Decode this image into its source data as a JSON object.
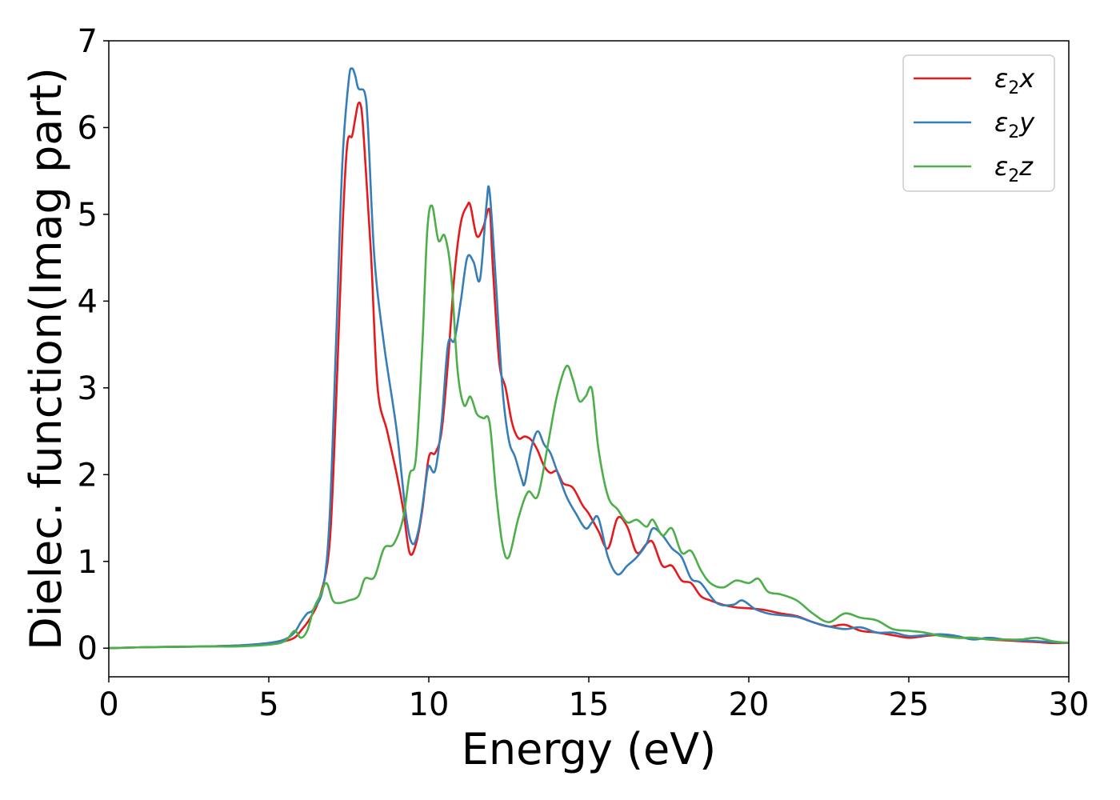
{
  "chart_data": {
    "type": "line",
    "xlabel": "Energy (eV)",
    "ylabel": "Dielec. function(Imag part)",
    "xlim": [
      0,
      30
    ],
    "ylim": [
      -0.33,
      7.0
    ],
    "xticks": [
      0,
      5,
      10,
      15,
      20,
      25,
      30
    ],
    "yticks": [
      0,
      1,
      2,
      3,
      4,
      5,
      6,
      7
    ],
    "grid": false,
    "legend_position": "top-right",
    "series": [
      {
        "name": "ε2x",
        "name_main": "ε",
        "name_sub": "2",
        "name_var": "x",
        "color": "#e41a1c",
        "x": [
          0,
          1,
          2,
          3,
          4,
          5,
          5.5,
          5.8,
          6.0,
          6.3,
          6.6,
          6.9,
          7.1,
          7.3,
          7.45,
          7.6,
          7.7,
          7.8,
          7.9,
          8.0,
          8.2,
          8.4,
          8.7,
          9.0,
          9.2,
          9.4,
          9.6,
          9.8,
          10.0,
          10.2,
          10.4,
          10.6,
          10.8,
          11.0,
          11.2,
          11.3,
          11.5,
          11.7,
          11.9,
          12.0,
          12.2,
          12.4,
          12.6,
          12.8,
          13.0,
          13.2,
          13.4,
          13.6,
          13.8,
          14.0,
          14.2,
          14.5,
          14.8,
          15.0,
          15.3,
          15.6,
          15.9,
          16.2,
          16.5,
          16.8,
          17.0,
          17.3,
          17.6,
          17.9,
          18.2,
          18.5,
          18.8,
          19.2,
          19.6,
          20.0,
          20.5,
          21.0,
          21.5,
          22.0,
          22.5,
          23.0,
          23.5,
          24.0,
          24.5,
          25.0,
          25.5,
          26.0,
          26.5,
          27.0,
          27.5,
          28.0,
          28.5,
          29.0,
          29.5,
          30.0
        ],
        "y": [
          0,
          0.01,
          0.015,
          0.02,
          0.03,
          0.05,
          0.08,
          0.12,
          0.2,
          0.35,
          0.6,
          1.2,
          2.8,
          4.8,
          5.8,
          5.9,
          6.1,
          6.28,
          6.2,
          5.7,
          4.5,
          3.0,
          2.5,
          2.0,
          1.6,
          1.1,
          1.2,
          1.6,
          2.2,
          2.25,
          2.5,
          3.3,
          4.3,
          4.9,
          5.1,
          5.1,
          4.75,
          4.85,
          5.05,
          4.4,
          3.3,
          3.0,
          2.6,
          2.42,
          2.44,
          2.4,
          2.28,
          2.1,
          2.02,
          2.04,
          1.9,
          1.85,
          1.65,
          1.55,
          1.35,
          1.15,
          1.5,
          1.4,
          1.1,
          1.2,
          1.22,
          0.95,
          0.95,
          0.78,
          0.75,
          0.6,
          0.55,
          0.5,
          0.47,
          0.46,
          0.44,
          0.4,
          0.37,
          0.3,
          0.25,
          0.27,
          0.2,
          0.18,
          0.15,
          0.12,
          0.14,
          0.15,
          0.12,
          0.12,
          0.1,
          0.09,
          0.08,
          0.07,
          0.06,
          0.06
        ]
      },
      {
        "name": "ε2y",
        "name_main": "ε",
        "name_sub": "2",
        "name_var": "y",
        "color": "#377eb8",
        "x": [
          0,
          1,
          2,
          3,
          4,
          5,
          5.5,
          5.8,
          6.0,
          6.2,
          6.4,
          6.7,
          6.9,
          7.1,
          7.3,
          7.5,
          7.6,
          7.7,
          7.8,
          8.0,
          8.1,
          8.3,
          8.6,
          9.0,
          9.3,
          9.5,
          9.7,
          9.9,
          10.0,
          10.2,
          10.4,
          10.6,
          10.8,
          11.0,
          11.2,
          11.4,
          11.6,
          11.8,
          11.9,
          12.1,
          12.3,
          12.5,
          12.7,
          12.9,
          13.0,
          13.2,
          13.4,
          13.6,
          13.8,
          14.0,
          14.3,
          14.6,
          14.9,
          15.1,
          15.3,
          15.6,
          15.9,
          16.2,
          16.5,
          16.8,
          17.0,
          17.3,
          17.6,
          17.9,
          18.2,
          18.5,
          19.0,
          19.5,
          19.8,
          20.2,
          20.6,
          21.0,
          21.5,
          22.0,
          22.5,
          23.0,
          23.5,
          24.0,
          24.5,
          25.0,
          25.5,
          26.0,
          26.5,
          27.0,
          27.5,
          28.0,
          28.5,
          29.0,
          29.5,
          30.0
        ],
        "y": [
          0,
          0.01,
          0.015,
          0.02,
          0.03,
          0.06,
          0.1,
          0.18,
          0.3,
          0.4,
          0.45,
          0.7,
          1.5,
          3.5,
          5.6,
          6.55,
          6.68,
          6.6,
          6.45,
          6.4,
          6.0,
          4.5,
          3.5,
          2.5,
          1.5,
          1.2,
          1.4,
          1.9,
          2.1,
          2.05,
          2.6,
          3.5,
          3.55,
          4.0,
          4.5,
          4.45,
          4.25,
          5.1,
          5.26,
          4.2,
          3.0,
          2.4,
          2.2,
          1.95,
          1.9,
          2.3,
          2.5,
          2.35,
          2.25,
          2.05,
          1.75,
          1.55,
          1.38,
          1.45,
          1.5,
          1.05,
          0.85,
          0.95,
          1.05,
          1.2,
          1.38,
          1.3,
          1.15,
          1.05,
          0.8,
          0.75,
          0.52,
          0.5,
          0.55,
          0.45,
          0.4,
          0.38,
          0.36,
          0.3,
          0.25,
          0.22,
          0.24,
          0.18,
          0.18,
          0.14,
          0.15,
          0.16,
          0.14,
          0.1,
          0.12,
          0.1,
          0.09,
          0.08,
          0.07,
          0.06
        ]
      },
      {
        "name": "ε2z",
        "name_main": "ε",
        "name_sub": "2",
        "name_var": "z",
        "color": "#4daf4a",
        "x": [
          0,
          1,
          2,
          3,
          4,
          5,
          5.5,
          5.8,
          6.0,
          6.2,
          6.4,
          6.6,
          6.8,
          7.0,
          7.2,
          7.5,
          7.8,
          8.0,
          8.3,
          8.6,
          8.9,
          9.2,
          9.4,
          9.6,
          9.8,
          9.95,
          10.1,
          10.3,
          10.5,
          10.7,
          10.9,
          11.1,
          11.3,
          11.5,
          11.7,
          11.9,
          12.1,
          12.3,
          12.5,
          12.8,
          13.1,
          13.4,
          13.7,
          14.0,
          14.3,
          14.5,
          14.7,
          14.9,
          15.1,
          15.3,
          15.6,
          15.9,
          16.2,
          16.5,
          16.8,
          17.0,
          17.3,
          17.6,
          17.9,
          18.2,
          18.5,
          18.8,
          19.2,
          19.6,
          20.0,
          20.3,
          20.6,
          21.0,
          21.5,
          22.0,
          22.5,
          23.0,
          23.5,
          24.0,
          24.5,
          25.0,
          25.5,
          26.0,
          26.5,
          27.0,
          27.5,
          28.0,
          28.5,
          29.0,
          29.5,
          30.0
        ],
        "y": [
          0,
          0.01,
          0.015,
          0.02,
          0.02,
          0.04,
          0.08,
          0.2,
          0.12,
          0.2,
          0.45,
          0.6,
          0.75,
          0.55,
          0.52,
          0.55,
          0.6,
          0.8,
          0.82,
          1.15,
          1.2,
          1.5,
          2.0,
          2.2,
          3.5,
          4.8,
          5.1,
          4.7,
          4.75,
          4.3,
          3.2,
          2.8,
          2.9,
          2.7,
          2.65,
          2.6,
          1.8,
          1.2,
          1.05,
          1.5,
          1.8,
          1.75,
          2.3,
          2.9,
          3.25,
          3.1,
          2.85,
          2.9,
          2.98,
          2.3,
          1.75,
          1.6,
          1.45,
          1.48,
          1.4,
          1.48,
          1.3,
          1.38,
          1.1,
          1.12,
          0.9,
          0.75,
          0.7,
          0.78,
          0.75,
          0.8,
          0.65,
          0.62,
          0.55,
          0.4,
          0.3,
          0.4,
          0.35,
          0.32,
          0.22,
          0.2,
          0.18,
          0.14,
          0.12,
          0.12,
          0.1,
          0.1,
          0.1,
          0.12,
          0.08,
          0.06
        ]
      }
    ]
  }
}
